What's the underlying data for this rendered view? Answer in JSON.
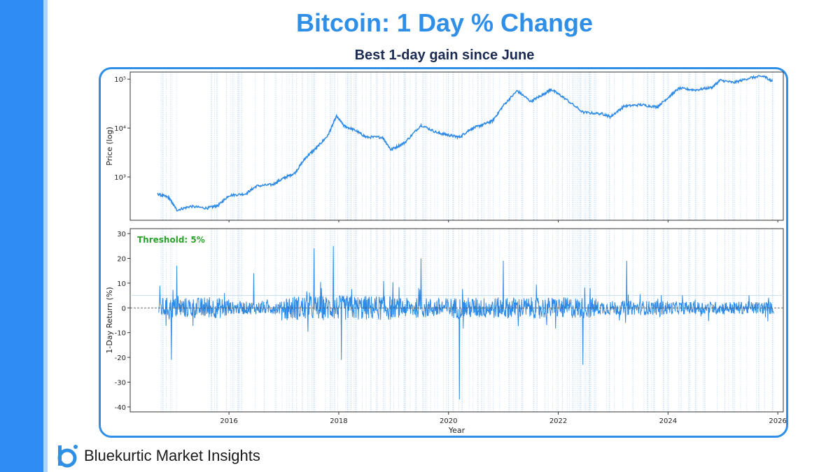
{
  "header": {
    "title": "Bitcoin: 1 Day % Change",
    "subtitle": "Best 1-day gain since June"
  },
  "footer": {
    "brand": "Bluekurtic Market Insights"
  },
  "colors": {
    "accent": "#2f8fe6",
    "sidebar": "#2f8cf2",
    "line": "#2f8ae5",
    "event": "#bcd9f5",
    "threshold": "#2ca02c"
  },
  "chart_data": [
    {
      "type": "line",
      "title": "",
      "ylabel": "Price (log)",
      "yscale": "log",
      "ylim": [
        130,
        140000
      ],
      "yticks": [
        {
          "value": 1000,
          "label": "10³"
        },
        {
          "value": 10000,
          "label": "10⁴"
        },
        {
          "value": 100000,
          "label": "10⁵"
        }
      ],
      "x": [
        2014.7,
        2014.9,
        2015.05,
        2015.3,
        2015.6,
        2015.8,
        2016.0,
        2016.3,
        2016.5,
        2016.8,
        2017.0,
        2017.2,
        2017.4,
        2017.6,
        2017.8,
        2017.96,
        2018.1,
        2018.3,
        2018.5,
        2018.8,
        2018.95,
        2019.2,
        2019.5,
        2019.8,
        2020.0,
        2020.2,
        2020.4,
        2020.6,
        2020.8,
        2021.0,
        2021.25,
        2021.5,
        2021.7,
        2021.87,
        2022.1,
        2022.45,
        2022.8,
        2022.95,
        2023.2,
        2023.5,
        2023.8,
        2024.0,
        2024.2,
        2024.5,
        2024.8,
        2024.95,
        2025.2,
        2025.5,
        2025.75,
        2025.9
      ],
      "values": [
        450,
        380,
        210,
        250,
        230,
        260,
        420,
        450,
        650,
        700,
        950,
        1200,
        2500,
        4000,
        7000,
        17500,
        11000,
        9000,
        6500,
        6500,
        3600,
        5000,
        11500,
        8000,
        7200,
        6500,
        9500,
        11500,
        14000,
        29000,
        58000,
        35000,
        47000,
        62000,
        42000,
        21000,
        19500,
        17000,
        28000,
        30000,
        27000,
        42000,
        65000,
        60000,
        68000,
        95000,
        85000,
        107000,
        115000,
        90000
      ],
      "xlim": [
        2014.2,
        2026.1
      ]
    },
    {
      "type": "line",
      "title": "",
      "xlabel": "Year",
      "ylabel": "1-Day Return (%)",
      "ylim": [
        -42,
        32
      ],
      "yticks": [
        -40,
        -30,
        -20,
        -10,
        0,
        10,
        20,
        30
      ],
      "xticks": [
        2016,
        2018,
        2020,
        2022,
        2024,
        2026
      ],
      "xlim": [
        2014.2,
        2026.1
      ],
      "annotation": "Threshold: 5%",
      "threshold": 5,
      "extremes": [
        {
          "x": 2014.95,
          "value": -21
        },
        {
          "x": 2015.05,
          "value": 17
        },
        {
          "x": 2016.45,
          "value": 14
        },
        {
          "x": 2017.55,
          "value": 24
        },
        {
          "x": 2017.9,
          "value": 25
        },
        {
          "x": 2018.05,
          "value": -21
        },
        {
          "x": 2019.5,
          "value": 20
        },
        {
          "x": 2020.2,
          "value": -37
        },
        {
          "x": 2021.0,
          "value": 19
        },
        {
          "x": 2022.45,
          "value": -23
        },
        {
          "x": 2023.25,
          "value": 19
        }
      ]
    }
  ]
}
